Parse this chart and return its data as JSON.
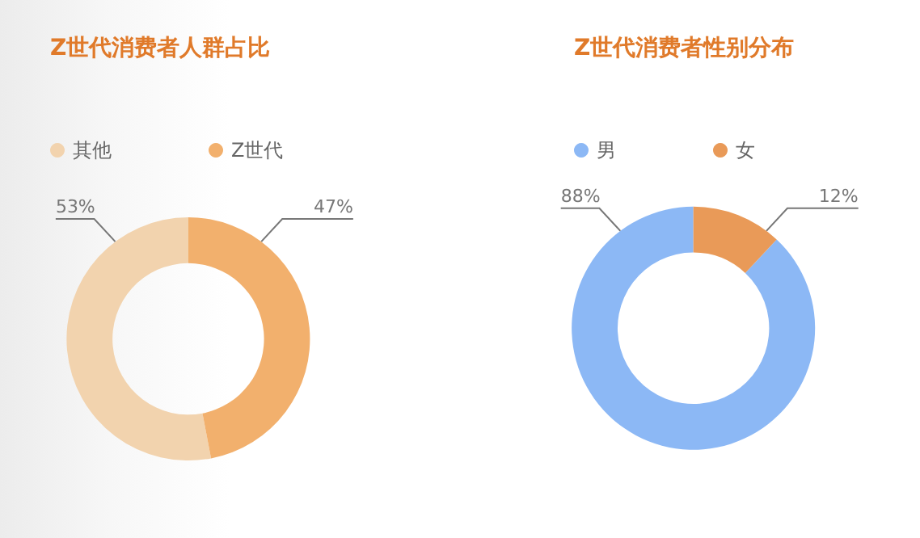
{
  "chart_data": [
    {
      "type": "donut",
      "title": "Z世代消费者人群占比",
      "categories": [
        "其他",
        "Z世代"
      ],
      "values": [
        53,
        47
      ],
      "colors": [
        "#f2d3ae",
        "#f2b06d"
      ],
      "value_labels": [
        "53%",
        "47%"
      ],
      "legend": "top"
    },
    {
      "type": "donut",
      "title": "Z世代消费者性别分布",
      "categories": [
        "男",
        "女"
      ],
      "values": [
        88,
        12
      ],
      "colors": [
        "#8cb8f5",
        "#e99a58"
      ],
      "value_labels": [
        "88%",
        "12%"
      ],
      "legend": "top"
    }
  ]
}
